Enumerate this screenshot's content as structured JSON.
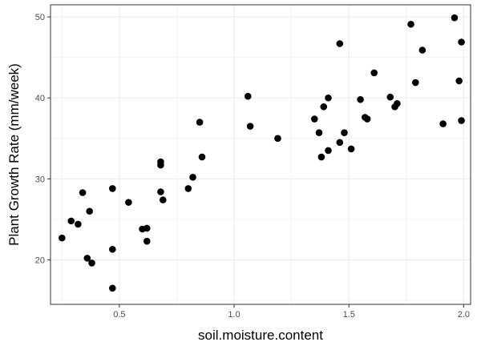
{
  "chart_data": {
    "type": "scatter",
    "title": "",
    "xlabel": "soil.moisture.content",
    "ylabel": "Plant Growth Rate (mm/week)",
    "xlim": [
      0.2,
      2.03
    ],
    "ylim": [
      14.5,
      51.5
    ],
    "x_ticks": [
      0.5,
      1.0,
      1.5,
      2.0
    ],
    "y_ticks": [
      20,
      30,
      40,
      50
    ],
    "x_tick_labels": [
      "0.5",
      "1.0",
      "1.5",
      "2.0"
    ],
    "y_tick_labels": [
      "20",
      "30",
      "40",
      "50"
    ],
    "grid": true,
    "legend": "none",
    "point_color": "#000000",
    "panel_border_color": "#333333",
    "grid_color": "#ebebeb",
    "points": [
      [
        0.25,
        22.7
      ],
      [
        0.29,
        24.8
      ],
      [
        0.32,
        24.4
      ],
      [
        0.34,
        28.3
      ],
      [
        0.36,
        20.2
      ],
      [
        0.37,
        26.0
      ],
      [
        0.38,
        19.6
      ],
      [
        0.47,
        28.8
      ],
      [
        0.47,
        21.3
      ],
      [
        0.47,
        16.5
      ],
      [
        0.54,
        27.1
      ],
      [
        0.6,
        23.8
      ],
      [
        0.62,
        23.9
      ],
      [
        0.62,
        22.3
      ],
      [
        0.68,
        28.4
      ],
      [
        0.68,
        31.7
      ],
      [
        0.68,
        32.1
      ],
      [
        0.69,
        27.4
      ],
      [
        0.8,
        28.8
      ],
      [
        0.82,
        30.2
      ],
      [
        0.85,
        37.0
      ],
      [
        0.86,
        32.7
      ],
      [
        1.06,
        40.2
      ],
      [
        1.07,
        36.5
      ],
      [
        1.19,
        35.0
      ],
      [
        1.35,
        37.4
      ],
      [
        1.37,
        35.7
      ],
      [
        1.38,
        32.7
      ],
      [
        1.39,
        38.9
      ],
      [
        1.41,
        40.0
      ],
      [
        1.41,
        33.5
      ],
      [
        1.46,
        46.7
      ],
      [
        1.46,
        34.5
      ],
      [
        1.48,
        35.7
      ],
      [
        1.51,
        33.7
      ],
      [
        1.55,
        39.8
      ],
      [
        1.57,
        37.6
      ],
      [
        1.58,
        37.4
      ],
      [
        1.61,
        43.1
      ],
      [
        1.68,
        40.1
      ],
      [
        1.7,
        38.9
      ],
      [
        1.71,
        39.3
      ],
      [
        1.77,
        49.1
      ],
      [
        1.79,
        41.9
      ],
      [
        1.82,
        45.9
      ],
      [
        1.91,
        36.8
      ],
      [
        1.96,
        49.9
      ],
      [
        1.98,
        42.1
      ],
      [
        1.99,
        46.9
      ],
      [
        1.99,
        37.2
      ]
    ]
  }
}
